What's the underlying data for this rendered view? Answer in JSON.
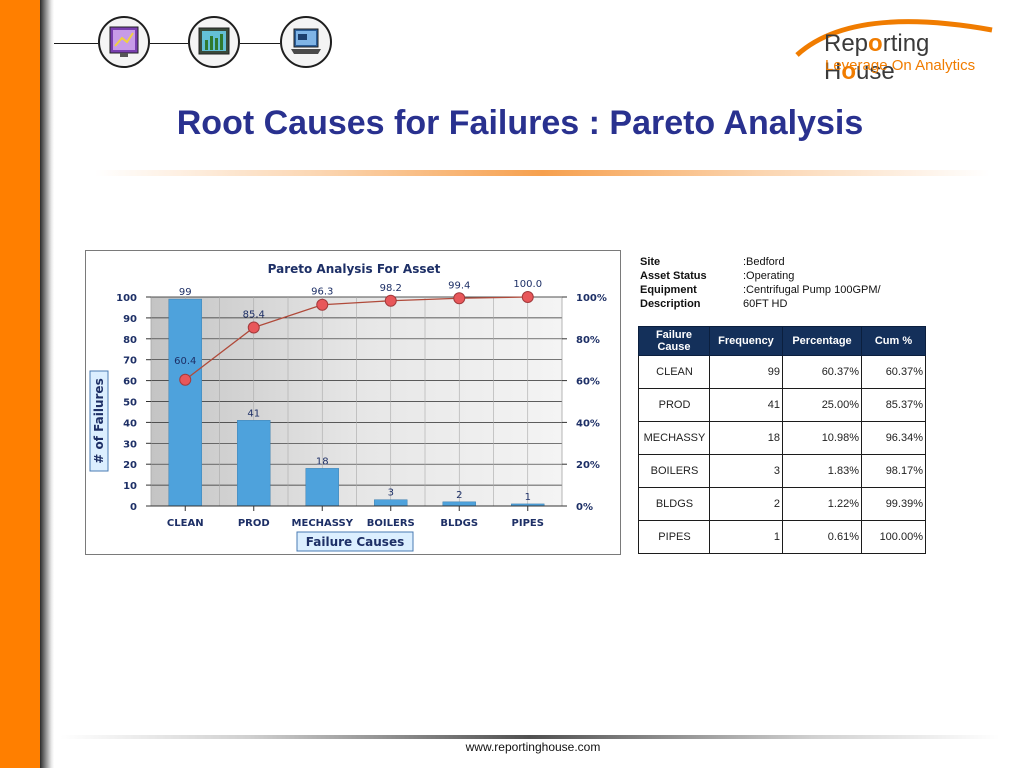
{
  "slide": {
    "title": "Root Causes for Failures : Pareto Analysis",
    "footer": "www.reportinghouse.com"
  },
  "logo": {
    "main_pre": "Rep",
    "main_mid": "rting H",
    "main_post": "use",
    "tagline": "Leverage On Analytics"
  },
  "header_icons": [
    "chart-monitor-icon",
    "bar-chart-icon",
    "laptop-icon"
  ],
  "info": {
    "site_label": "Site",
    "site_value": ":Bedford",
    "status_label": "Asset Status",
    "status_value": ":Operating",
    "equipment_label": "Equipment",
    "equipment_value": ":Centrifugal Pump 100GPM/",
    "description_label": "Description",
    "description_value": "60FT HD"
  },
  "table": {
    "headers": [
      "Failure Cause",
      "Frequency",
      "Percentage",
      "Cum %"
    ],
    "rows": [
      [
        "CLEAN",
        "99",
        "60.37%",
        "60.37%"
      ],
      [
        "PROD",
        "41",
        "25.00%",
        "85.37%"
      ],
      [
        "MECHASSY",
        "18",
        "10.98%",
        "96.34%"
      ],
      [
        "BOILERS",
        "3",
        "1.83%",
        "98.17%"
      ],
      [
        "BLDGS",
        "2",
        "1.22%",
        "99.39%"
      ],
      [
        "PIPES",
        "1",
        "0.61%",
        "100.00%"
      ]
    ]
  },
  "chart_data": {
    "type": "bar",
    "title": "Pareto Analysis For Asset",
    "xlabel": "Failure Causes",
    "ylabel": "# of Failures",
    "categories": [
      "CLEAN",
      "PROD",
      "MECHASSY",
      "BOILERS",
      "BLDGS",
      "PIPES"
    ],
    "values": [
      99,
      41,
      18,
      3,
      2,
      1
    ],
    "cumulative": [
      60.4,
      85.4,
      96.3,
      98.2,
      99.4,
      100.0
    ],
    "cumulative_labels": [
      "60.4",
      "85.4",
      "96.3",
      "98.2",
      "99.4",
      "100.0"
    ],
    "ylim": [
      0,
      100
    ],
    "y_ticks": [
      0,
      10,
      20,
      30,
      40,
      50,
      60,
      70,
      80,
      90,
      100
    ],
    "y2_ticks": [
      0,
      20,
      40,
      60,
      80,
      100
    ],
    "y2_tick_labels": [
      "0%",
      "20%",
      "40%",
      "60%",
      "80%",
      "100%"
    ],
    "grid": true,
    "bar_color": "#4ea2dc",
    "line_color": "#b04a3a",
    "marker_color": "#e8575a"
  }
}
